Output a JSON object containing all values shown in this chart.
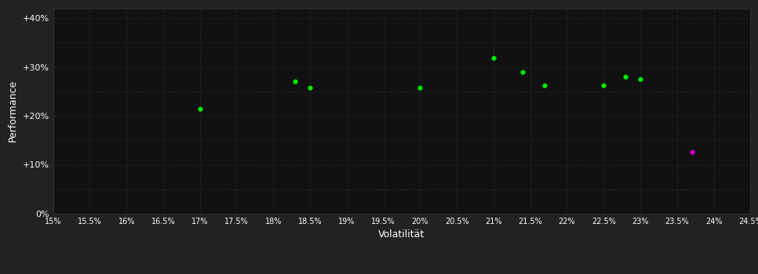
{
  "background_color": "#222222",
  "plot_bg_color": "#111111",
  "grid_color": "#3a3a3a",
  "text_color": "#ffffff",
  "xlabel": "Volatilität",
  "ylabel": "Performance",
  "xlim": [
    0.15,
    0.245
  ],
  "ylim": [
    0.0,
    0.42
  ],
  "xticks": [
    0.15,
    0.155,
    0.16,
    0.165,
    0.17,
    0.175,
    0.18,
    0.185,
    0.19,
    0.195,
    0.2,
    0.205,
    0.21,
    0.215,
    0.22,
    0.225,
    0.23,
    0.235,
    0.24,
    0.245
  ],
  "yticks": [
    0.0,
    0.1,
    0.2,
    0.3,
    0.4
  ],
  "ytick_labels": [
    "0%",
    "+10%",
    "+20%",
    "+30%",
    "+40%"
  ],
  "green_points": [
    [
      0.17,
      0.215
    ],
    [
      0.183,
      0.27
    ],
    [
      0.185,
      0.257
    ],
    [
      0.2,
      0.258
    ],
    [
      0.21,
      0.318
    ],
    [
      0.214,
      0.289
    ],
    [
      0.217,
      0.263
    ],
    [
      0.225,
      0.263
    ],
    [
      0.228,
      0.28
    ],
    [
      0.23,
      0.275
    ]
  ],
  "magenta_points": [
    [
      0.237,
      0.126
    ]
  ],
  "green_color": "#00ee00",
  "magenta_color": "#cc00cc",
  "marker_size": 20
}
